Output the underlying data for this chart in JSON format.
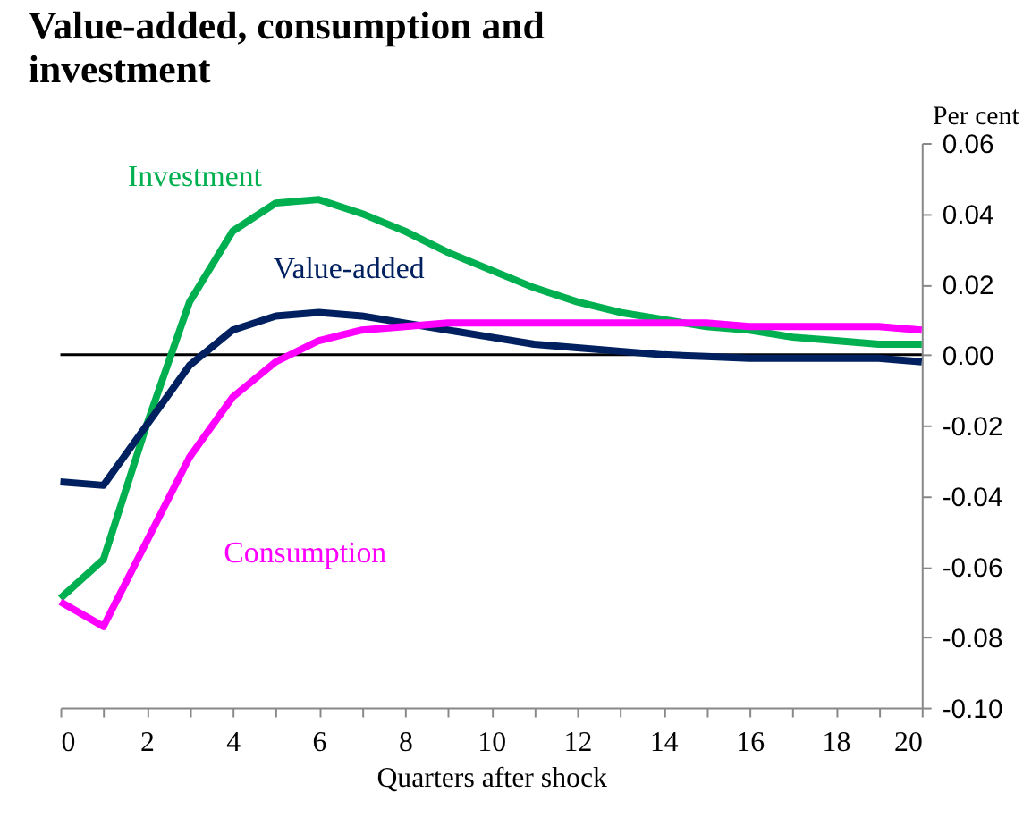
{
  "chart_data": {
    "type": "line",
    "title": "Value-added, consumption and investment",
    "xlabel": "Quarters after shock",
    "ylabel": "Per cent",
    "x": [
      0,
      1,
      2,
      3,
      4,
      5,
      6,
      7,
      8,
      9,
      10,
      11,
      12,
      13,
      14,
      15,
      16,
      17,
      18,
      19,
      20
    ],
    "series": [
      {
        "name": "Investment",
        "color": "#00b050",
        "values": [
          -0.069,
          -0.058,
          -0.02,
          0.015,
          0.035,
          0.043,
          0.044,
          0.04,
          0.035,
          0.029,
          0.024,
          0.019,
          0.015,
          0.012,
          0.01,
          0.008,
          0.007,
          0.005,
          0.004,
          0.003,
          0.003
        ]
      },
      {
        "name": "Value-added",
        "color": "#002060",
        "values": [
          -0.036,
          -0.037,
          -0.02,
          -0.003,
          0.007,
          0.011,
          0.012,
          0.011,
          0.009,
          0.007,
          0.005,
          0.003,
          0.002,
          0.001,
          0.0,
          -0.0005,
          -0.001,
          -0.001,
          -0.001,
          -0.001,
          -0.002
        ]
      },
      {
        "name": "Consumption",
        "color": "#ff00ff",
        "values": [
          -0.07,
          -0.077,
          -0.053,
          -0.029,
          -0.012,
          -0.002,
          0.004,
          0.007,
          0.008,
          0.009,
          0.009,
          0.009,
          0.009,
          0.009,
          0.009,
          0.009,
          0.008,
          0.008,
          0.008,
          0.008,
          0.007
        ]
      }
    ],
    "xlim": [
      0,
      20
    ],
    "xticks": [
      0,
      {
        "value": 1,
        "label": null
      },
      2,
      {
        "value": 3,
        "label": null
      },
      4,
      {
        "value": 5,
        "label": null
      },
      6,
      {
        "value": 7,
        "label": null
      },
      8,
      {
        "value": 9,
        "label": null
      },
      10,
      {
        "value": 11,
        "label": null
      },
      12,
      {
        "value": 13,
        "label": null
      },
      14,
      {
        "value": 15,
        "label": null
      },
      16,
      {
        "value": 17,
        "label": null
      },
      18,
      {
        "value": 19,
        "label": null
      },
      20
    ],
    "ylim": [
      -0.1,
      0.06
    ],
    "yticks": [
      {
        "value": 0.06,
        "label": "0.06"
      },
      {
        "value": 0.04,
        "label": "0.04"
      },
      {
        "value": 0.02,
        "label": "0.02"
      },
      {
        "value": 0.0,
        "label": "0.00"
      },
      {
        "value": -0.02,
        "label": "-0.02"
      },
      {
        "value": -0.04,
        "label": "-0.04"
      },
      {
        "value": -0.06,
        "label": "-0.06"
      },
      {
        "value": -0.08,
        "label": "-0.08"
      },
      {
        "value": -0.1,
        "label": "-0.10"
      }
    ],
    "ref_lines": [
      {
        "axis": "y",
        "value": 0,
        "color": "#000000"
      }
    ],
    "grid": false,
    "marker": "none",
    "line_style": "solid"
  }
}
